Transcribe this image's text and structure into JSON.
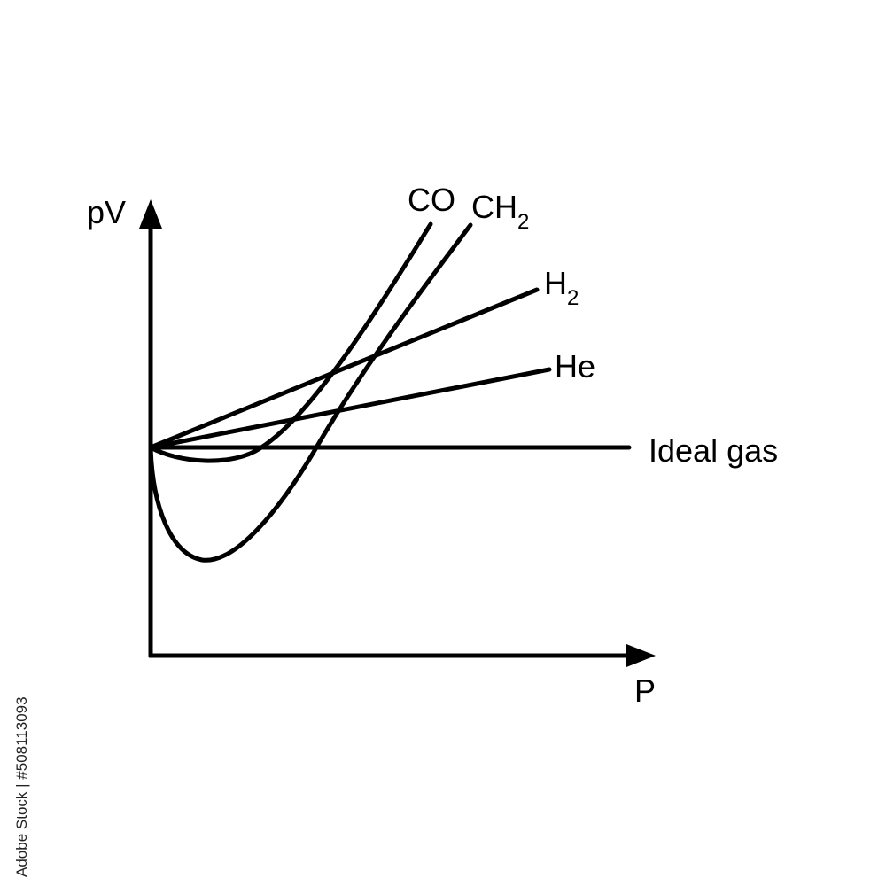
{
  "diagram": {
    "y_axis_label": "pV",
    "x_axis_label": "P",
    "curves": [
      {
        "id": "co",
        "label_main": "CO",
        "label_sub": ""
      },
      {
        "id": "ch2",
        "label_main": "CH",
        "label_sub": "2"
      },
      {
        "id": "h2",
        "label_main": "H",
        "label_sub": "2"
      },
      {
        "id": "he",
        "label_main": "He",
        "label_sub": ""
      },
      {
        "id": "ideal",
        "label_main": "Ideal gas",
        "label_sub": ""
      }
    ]
  },
  "watermark": {
    "stock_id": "508113093",
    "brand": "Adobe Stock"
  },
  "colors": {
    "ink": "#000000",
    "background": "#ffffff"
  }
}
